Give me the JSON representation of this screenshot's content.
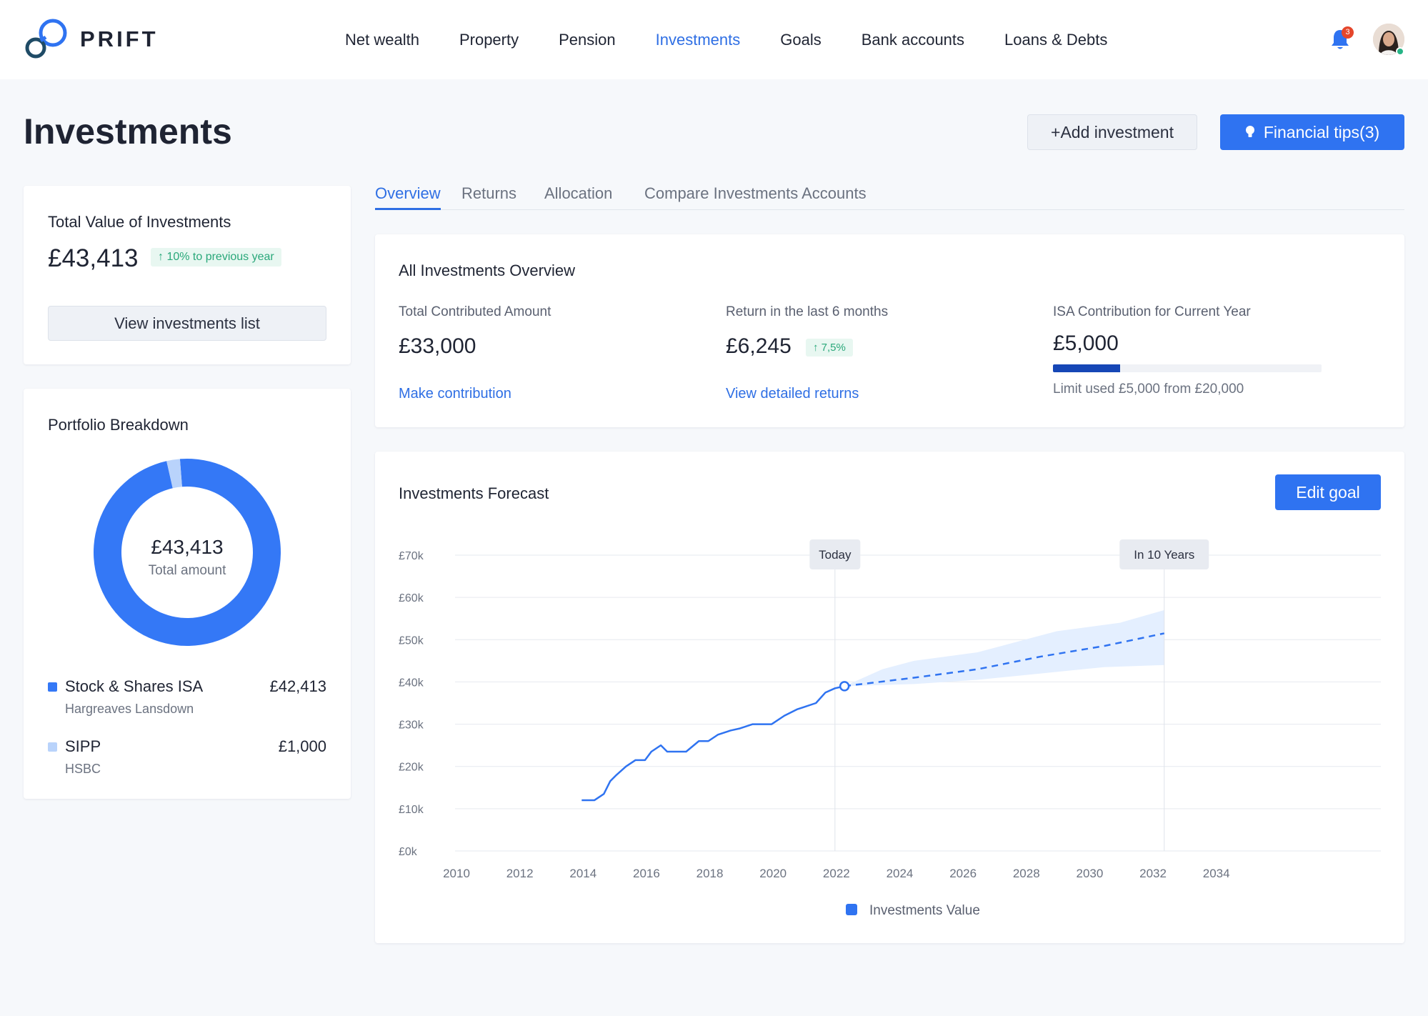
{
  "app": {
    "brand": "PRIFT",
    "nav": [
      {
        "label": "Net wealth",
        "active": false
      },
      {
        "label": "Property",
        "active": false
      },
      {
        "label": "Pension",
        "active": false
      },
      {
        "label": "Investments",
        "active": true
      },
      {
        "label": "Goals",
        "active": false
      },
      {
        "label": "Bank accounts",
        "active": false
      },
      {
        "label": "Loans & Debts",
        "active": false
      }
    ],
    "notification_count": "3",
    "accent_color": "#2f73f1"
  },
  "page": {
    "title": "Investments",
    "add_button": "+Add investment",
    "tips_button": "Financial tips(3)"
  },
  "total_card": {
    "label": "Total Value of Investments",
    "amount": "£43,413",
    "change": "↑ 10% to previous year",
    "button": "View investments list"
  },
  "portfolio": {
    "label": "Portfolio Breakdown",
    "center_value": "£43,413",
    "center_caption": "Total amount",
    "items": [
      {
        "name": "Stock & Shares ISA",
        "provider": "Hargreaves Lansdown",
        "value": "£42,413",
        "amount": 42413,
        "color": "#3478f6"
      },
      {
        "name": "SIPP",
        "provider": "HSBC",
        "value": "£1,000",
        "amount": 1000,
        "color": "#b9d3fb"
      }
    ]
  },
  "tabs": [
    {
      "label": "Overview",
      "active": true
    },
    {
      "label": "Returns",
      "active": false
    },
    {
      "label": "Allocation",
      "active": false
    },
    {
      "label": "Compare Investments Accounts",
      "active": false
    }
  ],
  "overview": {
    "label": "All Investments Overview",
    "contributed": {
      "title": "Total Contributed Amount",
      "value": "£33,000",
      "link": "Make contribution"
    },
    "returns": {
      "title": "Return in the last 6 months",
      "value": "£6,245",
      "badge": "↑ 7,5%",
      "link": "View detailed returns"
    },
    "isa": {
      "title": "ISA Contribution for Current Year",
      "value": "£5,000",
      "used_fraction": 0.25,
      "limit_text": "Limit used £5,000 from £20,000"
    }
  },
  "forecast": {
    "label": "Investments Forecast",
    "edit_button": "Edit goal"
  },
  "chart_data": {
    "type": "line",
    "y_ticks": [
      "£70k",
      "£60k",
      "£50k",
      "£40k",
      "£30k",
      "£20k",
      "£10k",
      "£0k"
    ],
    "ylim": [
      0,
      70000
    ],
    "x_ticks": [
      "2010",
      "2012",
      "2014",
      "2016",
      "2018",
      "2020",
      "2022",
      "2024",
      "2026",
      "2028",
      "2030",
      "2032",
      "2034"
    ],
    "xlim": [
      2010,
      2035
    ],
    "markers": [
      {
        "label": "Today",
        "x": 2022
      },
      {
        "label": "In 10 Years",
        "x": 2032.4
      }
    ],
    "legend": "Investments Value",
    "series": [
      {
        "name": "Investments Value",
        "style": "solid",
        "points": [
          [
            2014.0,
            12000
          ],
          [
            2014.4,
            12000
          ],
          [
            2014.7,
            13500
          ],
          [
            2014.9,
            16500
          ],
          [
            2015.1,
            18000
          ],
          [
            2015.4,
            20000
          ],
          [
            2015.7,
            21500
          ],
          [
            2016.0,
            21500
          ],
          [
            2016.2,
            23500
          ],
          [
            2016.5,
            25000
          ],
          [
            2016.7,
            23500
          ],
          [
            2017.0,
            23500
          ],
          [
            2017.3,
            23500
          ],
          [
            2017.7,
            26000
          ],
          [
            2018.0,
            26000
          ],
          [
            2018.3,
            27500
          ],
          [
            2018.7,
            28500
          ],
          [
            2019.0,
            29000
          ],
          [
            2019.4,
            30000
          ],
          [
            2019.7,
            30000
          ],
          [
            2020.0,
            30000
          ],
          [
            2020.4,
            32000
          ],
          [
            2020.8,
            33500
          ],
          [
            2021.0,
            34000
          ],
          [
            2021.4,
            35000
          ],
          [
            2021.7,
            37500
          ],
          [
            2022.0,
            38500
          ],
          [
            2022.3,
            39000
          ]
        ]
      },
      {
        "name": "Forecast",
        "style": "dashed",
        "points": [
          [
            2022.3,
            39000
          ],
          [
            2024.5,
            41000
          ],
          [
            2026.5,
            43000
          ],
          [
            2028.5,
            46000
          ],
          [
            2030.5,
            48500
          ],
          [
            2032.4,
            51500
          ]
        ]
      }
    ],
    "band": {
      "upper": [
        [
          2022.3,
          39000
        ],
        [
          2023.5,
          43000
        ],
        [
          2024.5,
          45000
        ],
        [
          2026.5,
          47000
        ],
        [
          2028,
          50000
        ],
        [
          2029,
          52000
        ],
        [
          2031,
          54000
        ],
        [
          2032.4,
          57000
        ]
      ],
      "lower": [
        [
          2022.3,
          39000
        ],
        [
          2024.5,
          39500
        ],
        [
          2026.5,
          40500
        ],
        [
          2028.5,
          42000
        ],
        [
          2030.5,
          43500
        ],
        [
          2032.4,
          44000
        ]
      ]
    }
  }
}
